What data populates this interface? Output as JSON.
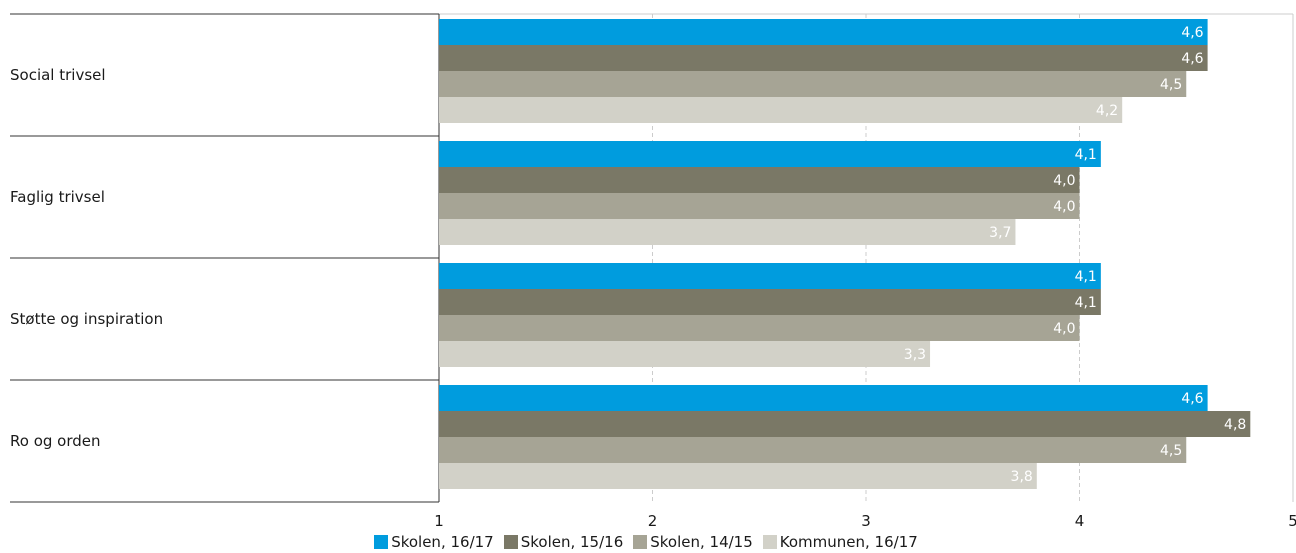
{
  "chart_data": {
    "type": "bar",
    "orientation": "horizontal",
    "categories": [
      "Social trivsel",
      "Faglig trivsel",
      "Støtte og inspiration",
      "Ro og orden"
    ],
    "series": [
      {
        "name": "Skolen, 16/17",
        "color": "#009cde",
        "values": [
          4.6,
          4.1,
          4.1,
          4.6
        ],
        "labels": [
          "4,6",
          "4,1",
          "4,1",
          "4,6"
        ]
      },
      {
        "name": "Skolen, 15/16",
        "color": "#7a7866",
        "values": [
          4.6,
          4.0,
          4.1,
          4.8
        ],
        "labels": [
          "4,6",
          "4,0",
          "4,1",
          "4,8"
        ]
      },
      {
        "name": "Skolen, 14/15",
        "color": "#a6a495",
        "values": [
          4.5,
          4.0,
          4.0,
          4.5
        ],
        "labels": [
          "4,5",
          "4,0",
          "4,0",
          "4,5"
        ]
      },
      {
        "name": "Kommunen, 16/17",
        "color": "#d2d1c8",
        "values": [
          4.2,
          3.7,
          3.3,
          3.8
        ],
        "labels": [
          "4,2",
          "3,7",
          "3,3",
          "3,8"
        ]
      }
    ],
    "xlim": [
      1,
      5
    ],
    "xticks": [
      "1",
      "2",
      "3",
      "4",
      "5"
    ],
    "grid": true,
    "legend_position": "bottom-center"
  }
}
